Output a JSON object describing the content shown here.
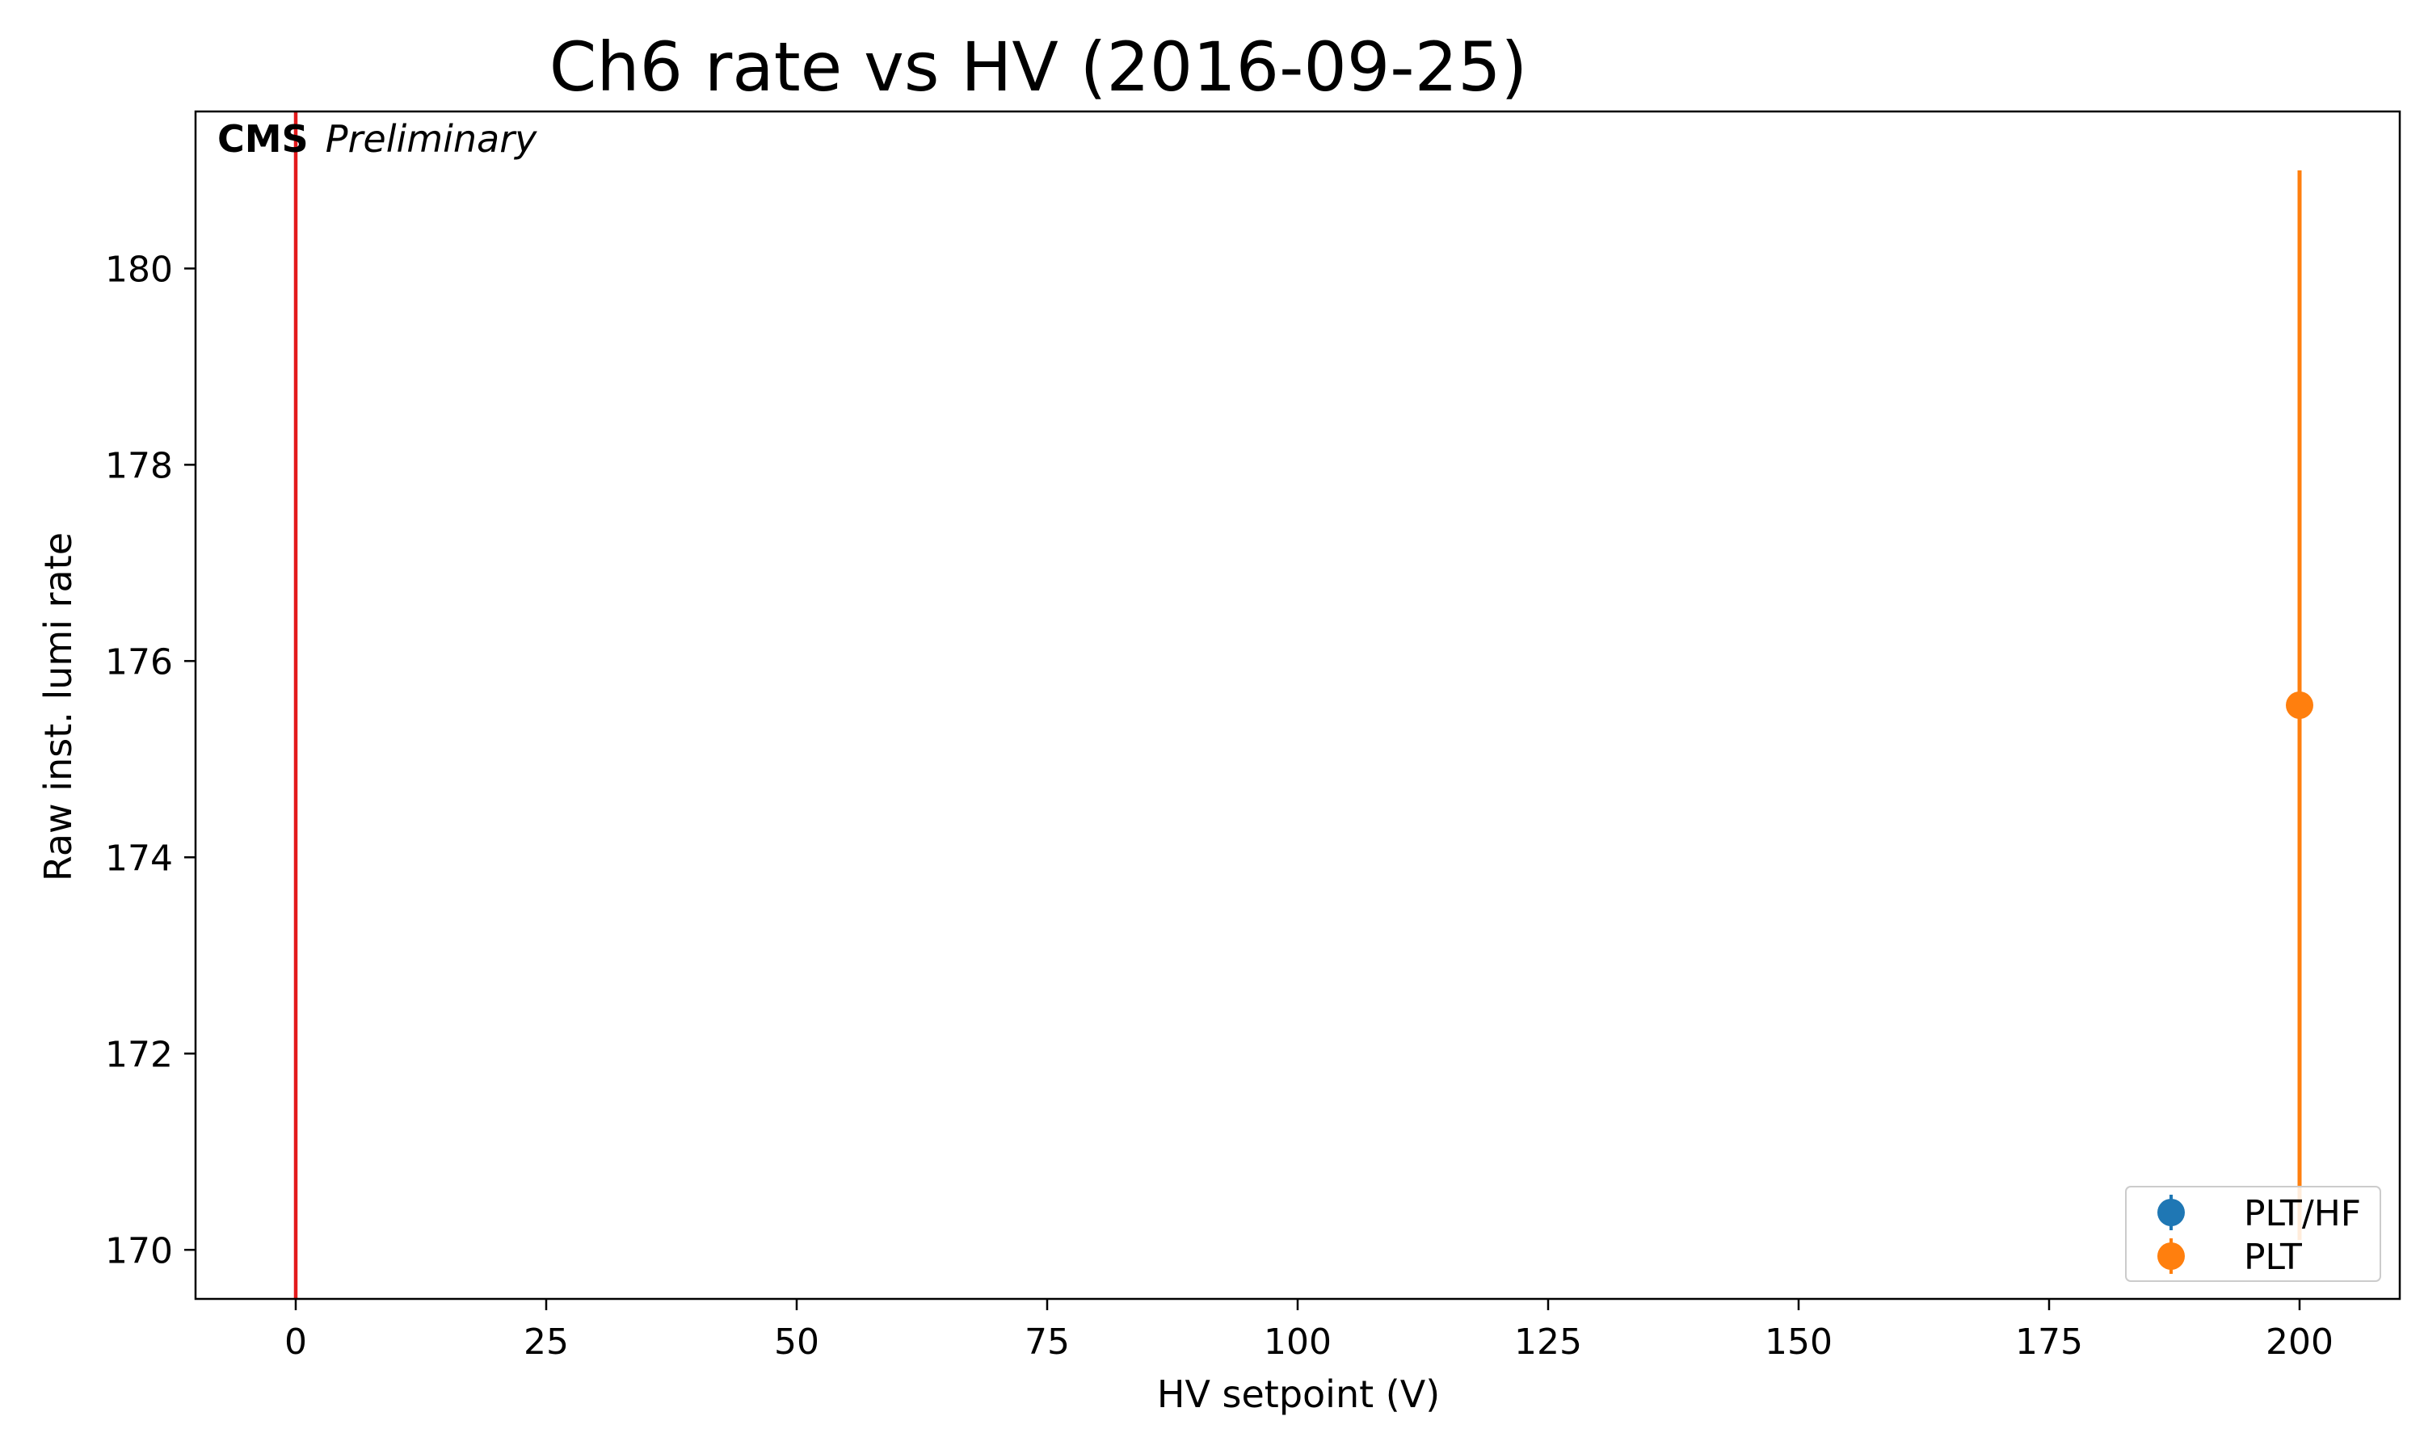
{
  "chart_data": {
    "type": "scatter",
    "title": "Ch6 rate vs HV (2016-09-25)",
    "xlabel": "HV setpoint (V)",
    "ylabel": "Raw inst. lumi rate",
    "xlim": [
      -10,
      210
    ],
    "ylim": [
      169.5,
      181.6
    ],
    "xticks": [
      0,
      25,
      50,
      75,
      100,
      125,
      150,
      175,
      200
    ],
    "yticks": [
      170,
      172,
      174,
      176,
      178,
      180
    ],
    "annotation": {
      "bold": "CMS",
      "italic": "Preliminary",
      "position": "top-left"
    },
    "reference_line": {
      "x": 0,
      "color": "#e31a1c"
    },
    "legend": {
      "position": "lower-right"
    },
    "series": [
      {
        "name": "PLT/HF",
        "color": "#1f77b4",
        "points": []
      },
      {
        "name": "PLT",
        "color": "#ff7f0e",
        "points": [
          {
            "x": 200,
            "y": 175.55,
            "yerr": 5.45
          }
        ]
      }
    ],
    "grid": false
  }
}
